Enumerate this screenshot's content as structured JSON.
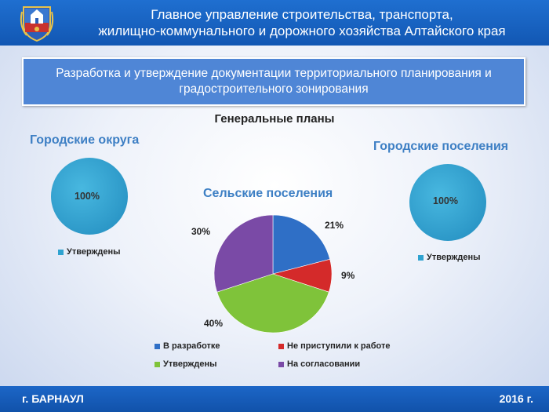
{
  "header": {
    "title_line1": "Главное управление строительства, транспорта,",
    "title_line2": "жилищно-коммунального и дорожного хозяйства Алтайского края"
  },
  "subheader": {
    "text": "Разработка и утверждение документации территориального планирования и градостроительного зонирования"
  },
  "section_title": "Генеральные планы",
  "footer": {
    "city": "г. БАРНАУЛ",
    "year": "2016 г."
  },
  "chart_data": [
    {
      "type": "pie",
      "title": "Городские округа",
      "categories": [
        "Утверждены"
      ],
      "values": [
        100
      ],
      "labels": [
        "100%"
      ],
      "colors": [
        "#2fa3d0"
      ],
      "legend": "bottom"
    },
    {
      "type": "pie",
      "title": "Сельские поселения",
      "categories": [
        "В разработке",
        "Не приступили к работе",
        "Утверждены",
        "На согласовании"
      ],
      "values": [
        21,
        9,
        40,
        30
      ],
      "labels": [
        "21%",
        "9%",
        "40%",
        "30%"
      ],
      "colors": [
        "#2f6fc6",
        "#d42a2a",
        "#7fc33a",
        "#7a4aa6"
      ],
      "legend": "bottom"
    },
    {
      "type": "pie",
      "title": "Городские поселения",
      "categories": [
        "Утверждены"
      ],
      "values": [
        100
      ],
      "labels": [
        "100%"
      ],
      "colors": [
        "#2fa3d0"
      ],
      "legend": "bottom"
    }
  ]
}
